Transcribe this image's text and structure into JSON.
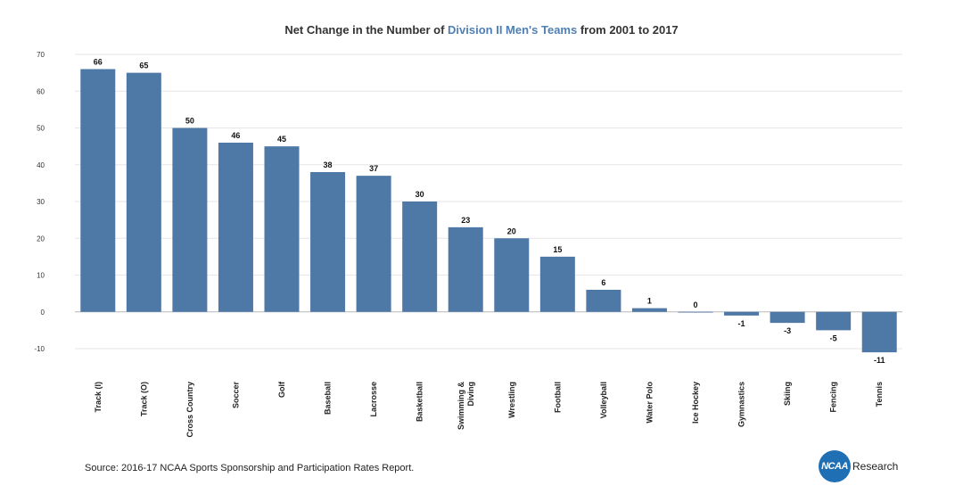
{
  "title": {
    "prefix": "Net Change in the Number of ",
    "highlight": "Division II Men's Teams",
    "suffix": " from 2001 to 2017"
  },
  "source": "Source: 2016-17 NCAA Sports Sponsorship and Participation Rates Report.",
  "logo": {
    "mark": "NCAA",
    "text": "Research"
  },
  "colors": {
    "bar": "#4e79a7",
    "highlight": "#4e7fb5",
    "grid": "#e6e6e6",
    "zero_line": "#b8b8b8"
  },
  "chart_data": {
    "type": "bar",
    "title": "Net Change in the Number of Division II Men's Teams from 2001 to 2017",
    "xlabel": "",
    "ylabel": "",
    "ylim": [
      -10,
      70
    ],
    "yticks": [
      -10,
      0,
      10,
      20,
      30,
      40,
      50,
      60,
      70
    ],
    "grid": true,
    "categories": [
      "Track (I)",
      "Track (O)",
      "Cross Country",
      "Soccer",
      "Golf",
      "Baseball",
      "Lacrosse",
      "Basketball",
      "Swimming & Diving",
      "Wrestling",
      "Football",
      "Volleyball",
      "Water Polo",
      "Ice Hockey",
      "Gymnastics",
      "Skiing",
      "Fencing",
      "Tennis"
    ],
    "values": [
      66,
      65,
      50,
      46,
      45,
      38,
      37,
      30,
      23,
      20,
      15,
      6,
      1,
      0,
      -1,
      -3,
      -5,
      -11
    ]
  }
}
